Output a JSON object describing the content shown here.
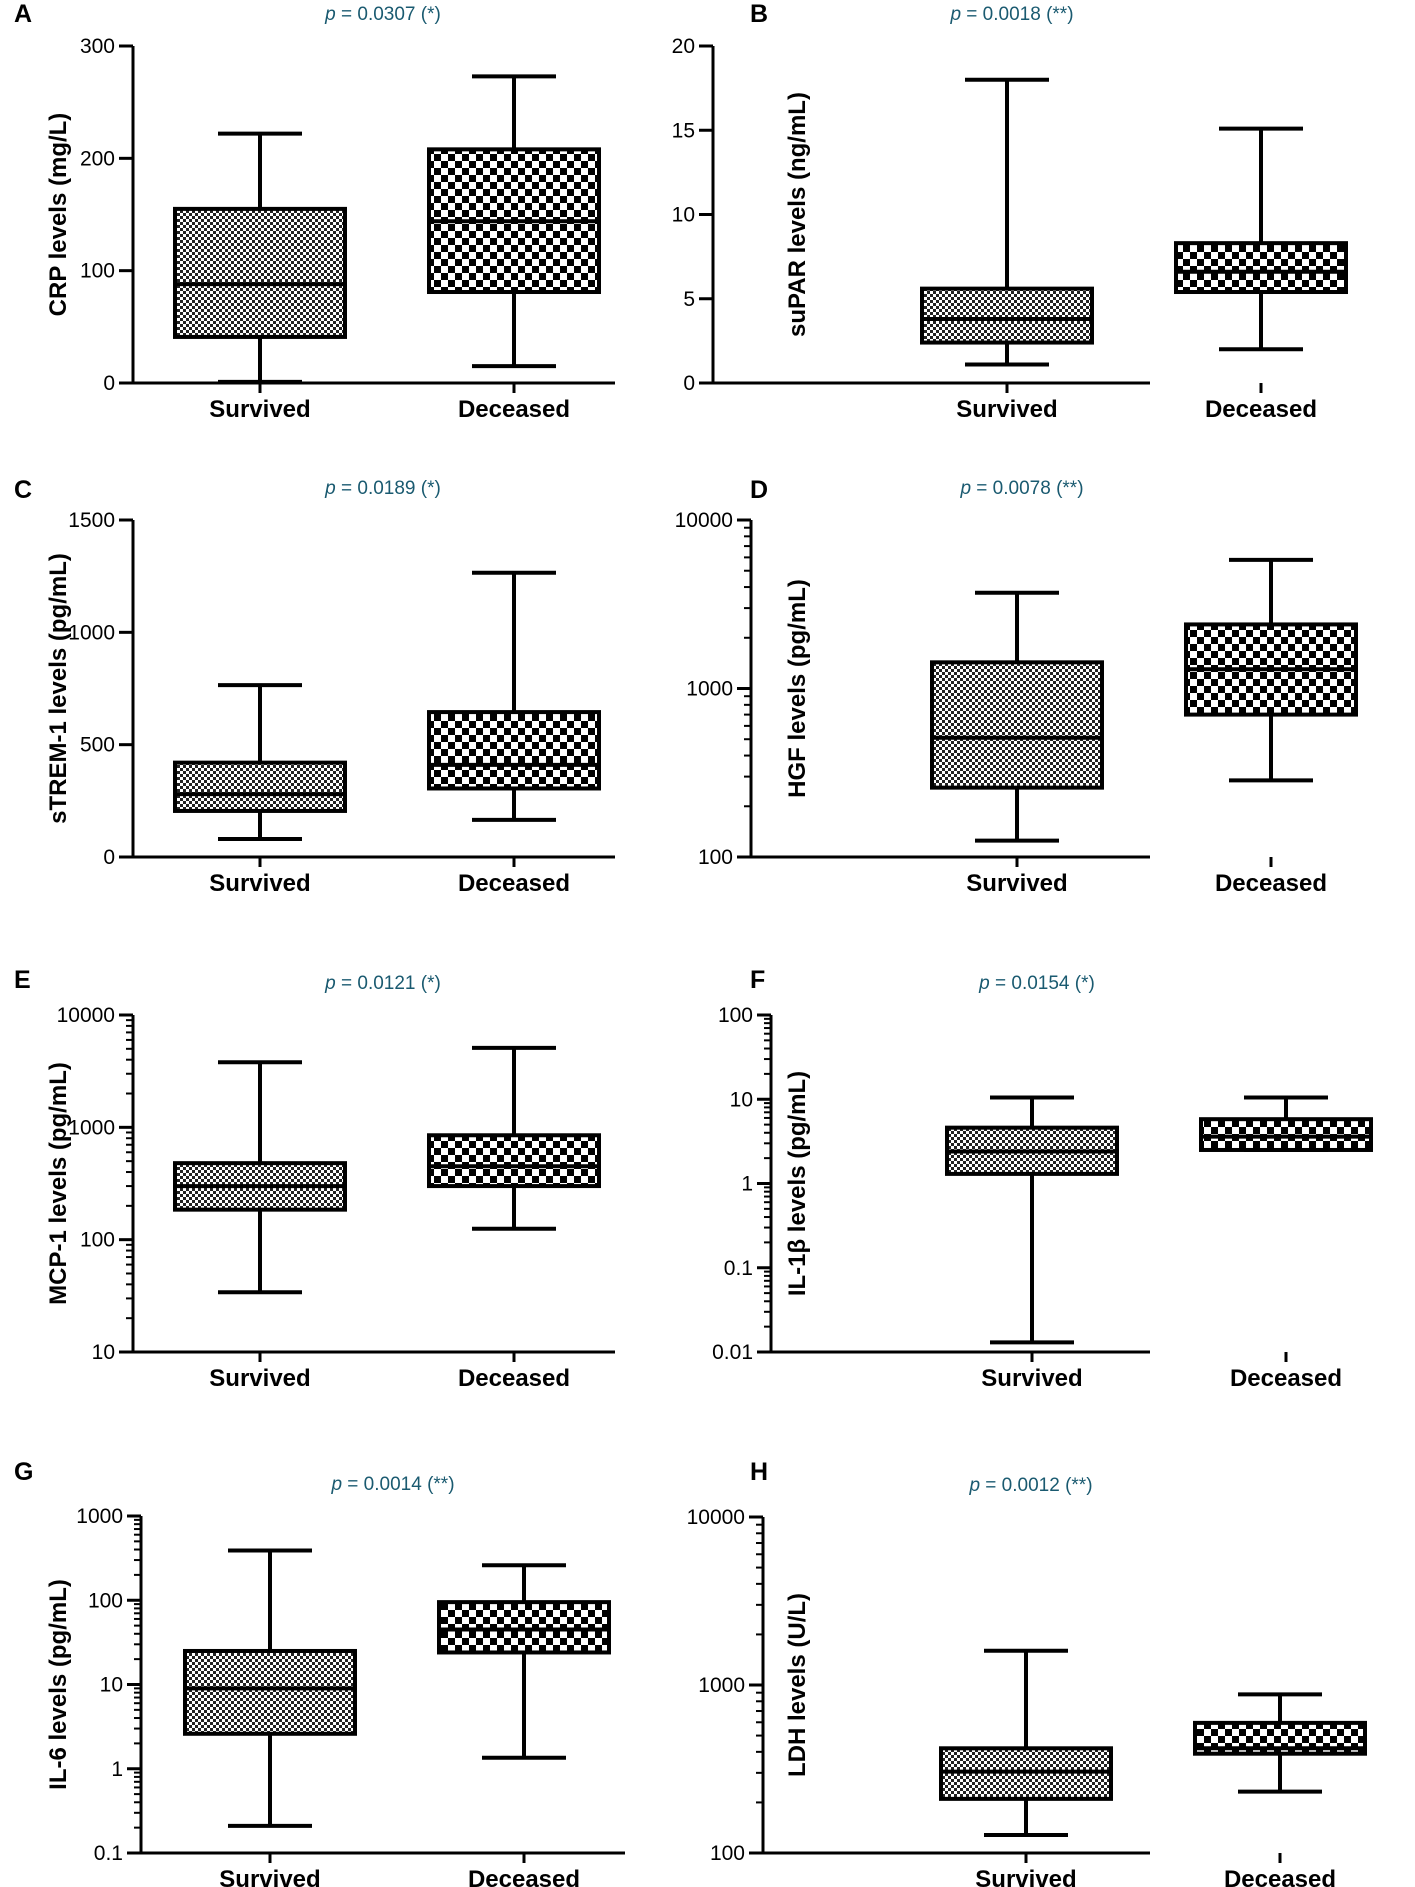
{
  "chart_data": [
    {
      "panel": "A",
      "type": "box",
      "scale": "linear",
      "ylabel": "CRP levels (mg/L)",
      "ylim": [
        0,
        300
      ],
      "ticks": [
        {
          "v": 0,
          "label": "0"
        },
        {
          "v": 100,
          "label": "100"
        },
        {
          "v": 200,
          "label": "200"
        },
        {
          "v": 300,
          "label": "300"
        }
      ],
      "minor_ticks": [],
      "pvalue": {
        "prefix": "p",
        "text": " = 0.0307 (*)"
      },
      "categories": [
        "Survived",
        "Deceased"
      ],
      "boxes": [
        {
          "category": "Survived",
          "min": 1,
          "q1": 41,
          "median": 88,
          "q3": 155,
          "max": 222
        },
        {
          "category": "Deceased",
          "min": 15,
          "q1": 81,
          "median": 144,
          "q3": 208,
          "max": 273
        }
      ]
    },
    {
      "panel": "B",
      "type": "box",
      "scale": "linear",
      "ylabel": "suPAR levels (ng/mL)",
      "ylim": [
        0,
        20
      ],
      "ticks": [
        {
          "v": 0,
          "label": "0"
        },
        {
          "v": 5,
          "label": "5"
        },
        {
          "v": 10,
          "label": "10"
        },
        {
          "v": 15,
          "label": "15"
        },
        {
          "v": 20,
          "label": "20"
        }
      ],
      "minor_ticks": [],
      "pvalue": {
        "prefix": "p",
        "text": " = 0.0018 (**)"
      },
      "categories": [
        "Survived",
        "Deceased"
      ],
      "boxes": [
        {
          "category": "Survived",
          "min": 1.1,
          "q1": 2.4,
          "median": 3.8,
          "q3": 5.6,
          "max": 18.0
        },
        {
          "category": "Deceased",
          "min": 2.0,
          "q1": 5.4,
          "median": 6.6,
          "q3": 8.3,
          "max": 15.1
        }
      ]
    },
    {
      "panel": "C",
      "type": "box",
      "scale": "linear",
      "ylabel": "sTREM-1 levels (pg/mL)",
      "ylim": [
        0,
        1500
      ],
      "ticks": [
        {
          "v": 0,
          "label": "0"
        },
        {
          "v": 500,
          "label": "500"
        },
        {
          "v": 1000,
          "label": "1000"
        },
        {
          "v": 1500,
          "label": "1500"
        }
      ],
      "minor_ticks": [],
      "pvalue": {
        "prefix": "p",
        "text": " = 0.0189 (*)"
      },
      "categories": [
        "Survived",
        "Deceased"
      ],
      "boxes": [
        {
          "category": "Survived",
          "min": 80,
          "q1": 205,
          "median": 280,
          "q3": 420,
          "max": 765
        },
        {
          "category": "Deceased",
          "min": 165,
          "q1": 305,
          "median": 410,
          "q3": 645,
          "max": 1265
        }
      ]
    },
    {
      "panel": "D",
      "type": "box",
      "scale": "log",
      "ylabel": "HGF levels (pg/mL)",
      "ylim": [
        100,
        10000
      ],
      "ticks": [
        {
          "v": 100,
          "label": "100"
        },
        {
          "v": 1000,
          "label": "1000"
        },
        {
          "v": 10000,
          "label": "10000"
        }
      ],
      "minor_ticks": [
        200,
        300,
        400,
        500,
        600,
        700,
        800,
        900,
        2000,
        3000,
        4000,
        5000,
        6000,
        7000,
        8000,
        9000
      ],
      "pvalue": {
        "prefix": "p",
        "text": " = 0.0078 (**)"
      },
      "categories": [
        "Survived",
        "Deceased"
      ],
      "boxes": [
        {
          "category": "Survived",
          "min": 125,
          "q1": 258,
          "median": 510,
          "q3": 1430,
          "max": 3700
        },
        {
          "category": "Deceased",
          "min": 285,
          "q1": 700,
          "median": 1300,
          "q3": 2400,
          "max": 5800
        }
      ]
    },
    {
      "panel": "E",
      "type": "box",
      "scale": "log",
      "ylabel": "MCP-1 levels (pg/mL)",
      "ylim": [
        10,
        10000
      ],
      "ticks": [
        {
          "v": 10,
          "label": "10"
        },
        {
          "v": 100,
          "label": "100"
        },
        {
          "v": 1000,
          "label": "1000"
        },
        {
          "v": 10000,
          "label": "10000"
        }
      ],
      "minor_ticks": [
        20,
        30,
        40,
        50,
        60,
        70,
        80,
        90,
        200,
        300,
        400,
        500,
        600,
        700,
        800,
        900,
        2000,
        3000,
        4000,
        5000,
        6000,
        7000,
        8000,
        9000
      ],
      "pvalue": {
        "prefix": "p",
        "text": " = 0.0121 (*)"
      },
      "categories": [
        "Survived",
        "Deceased"
      ],
      "boxes": [
        {
          "category": "Survived",
          "min": 34,
          "q1": 185,
          "median": 300,
          "q3": 480,
          "max": 3800
        },
        {
          "category": "Deceased",
          "min": 125,
          "q1": 300,
          "median": 450,
          "q3": 850,
          "max": 5100
        }
      ]
    },
    {
      "panel": "F",
      "type": "box",
      "scale": "log",
      "ylabel": "IL-1β levels (pg/mL)",
      "ylim": [
        0.01,
        100
      ],
      "ticks": [
        {
          "v": 0.01,
          "label": "0.01"
        },
        {
          "v": 0.1,
          "label": "0.1"
        },
        {
          "v": 1,
          "label": "1"
        },
        {
          "v": 10,
          "label": "10"
        },
        {
          "v": 100,
          "label": "100"
        }
      ],
      "minor_ticks": [
        0.02,
        0.03,
        0.04,
        0.05,
        0.06,
        0.07,
        0.08,
        0.09,
        0.2,
        0.3,
        0.4,
        0.5,
        0.6,
        0.7,
        0.8,
        0.9,
        2,
        3,
        4,
        5,
        6,
        7,
        8,
        9,
        20,
        30,
        40,
        50,
        60,
        70,
        80,
        90
      ],
      "pvalue": {
        "prefix": "p",
        "text": " = 0.0154 (*)"
      },
      "categories": [
        "Survived",
        "Deceased"
      ],
      "boxes": [
        {
          "category": "Survived",
          "min": 0.013,
          "q1": 1.3,
          "median": 2.4,
          "q3": 4.6,
          "max": 10.5
        },
        {
          "category": "Deceased",
          "min": 2.5,
          "q1": 2.5,
          "median": 3.6,
          "q3": 5.8,
          "max": 10.5
        }
      ]
    },
    {
      "panel": "G",
      "type": "box",
      "scale": "log",
      "ylabel": "IL-6 levels (pg/mL)",
      "ylim": [
        0.1,
        1000
      ],
      "ticks": [
        {
          "v": 0.1,
          "label": "0.1"
        },
        {
          "v": 1,
          "label": "1"
        },
        {
          "v": 10,
          "label": "10"
        },
        {
          "v": 100,
          "label": "100"
        },
        {
          "v": 1000,
          "label": "1000"
        }
      ],
      "minor_ticks": [
        0.2,
        0.3,
        0.4,
        0.5,
        0.6,
        0.7,
        0.8,
        0.9,
        2,
        3,
        4,
        5,
        6,
        7,
        8,
        9,
        20,
        30,
        40,
        50,
        60,
        70,
        80,
        90,
        200,
        300,
        400,
        500,
        600,
        700,
        800,
        900
      ],
      "pvalue": {
        "prefix": "p",
        "text": " = 0.0014 (**)"
      },
      "categories": [
        "Survived",
        "Deceased"
      ],
      "boxes": [
        {
          "category": "Survived",
          "min": 0.21,
          "q1": 2.6,
          "median": 9.0,
          "q3": 25,
          "max": 390
        },
        {
          "category": "Deceased",
          "min": 1.35,
          "q1": 24,
          "median": 45,
          "q3": 95,
          "max": 260
        }
      ]
    },
    {
      "panel": "H",
      "type": "box",
      "scale": "log",
      "ylabel": "LDH levels (U/L)",
      "ylim": [
        100,
        10000
      ],
      "ticks": [
        {
          "v": 100,
          "label": "100"
        },
        {
          "v": 1000,
          "label": "1000"
        },
        {
          "v": 10000,
          "label": "10000"
        }
      ],
      "minor_ticks": [
        200,
        300,
        400,
        500,
        600,
        700,
        800,
        900,
        2000,
        3000,
        4000,
        5000,
        6000,
        7000,
        8000,
        9000
      ],
      "pvalue": {
        "prefix": "p",
        "text": " = 0.0012 (**)"
      },
      "categories": [
        "Survived",
        "Deceased"
      ],
      "boxes": [
        {
          "category": "Survived",
          "min": 128,
          "q1": 210,
          "median": 305,
          "q3": 420,
          "max": 1600
        },
        {
          "category": "Deceased",
          "min": 232,
          "q1": 390,
          "median": 420,
          "q3": 595,
          "max": 880
        }
      ]
    }
  ]
}
